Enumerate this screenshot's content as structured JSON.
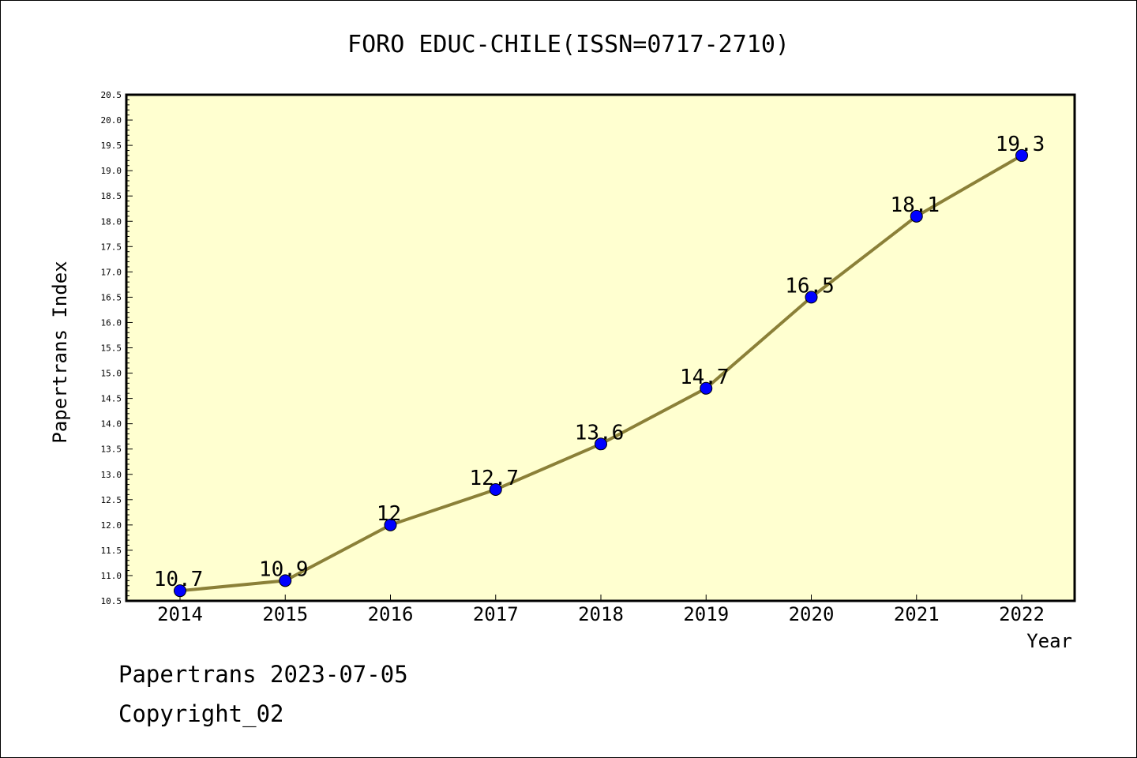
{
  "chart_data": {
    "type": "line",
    "title": "FORO EDUC-CHILE(ISSN=0717-2710)",
    "xlabel": "Year",
    "ylabel": "Papertrans Index",
    "x": [
      "2014",
      "2015",
      "2016",
      "2017",
      "2018",
      "2019",
      "2020",
      "2021",
      "2022"
    ],
    "series": [
      {
        "values": [
          10.7,
          10.9,
          12,
          12.7,
          13.6,
          14.7,
          16.5,
          18.1,
          19.3
        ],
        "labels": [
          "10.7",
          "10.9",
          "12",
          "12.7",
          "13.6",
          "14.7",
          "16.5",
          "18.1",
          "19.3"
        ]
      }
    ],
    "ylim": [
      10.5,
      20.5
    ],
    "yticks": [
      "10.5",
      "11.0",
      "11.5",
      "12.0",
      "12.5",
      "13.0",
      "13.5",
      "14.0",
      "14.5",
      "15.0",
      "15.5",
      "16.0",
      "16.5",
      "17.0",
      "17.5",
      "18.0",
      "18.5",
      "19.0",
      "19.5",
      "20.0",
      "20.5"
    ],
    "grid": false,
    "legend": "none",
    "colors": {
      "plot_background": "#ffffd0",
      "line": "#8b8038",
      "marker": "#0000ff",
      "axis": "#000000"
    }
  },
  "footer": {
    "line1": "Papertrans 2023-07-05",
    "line2": "Copyright_02"
  }
}
